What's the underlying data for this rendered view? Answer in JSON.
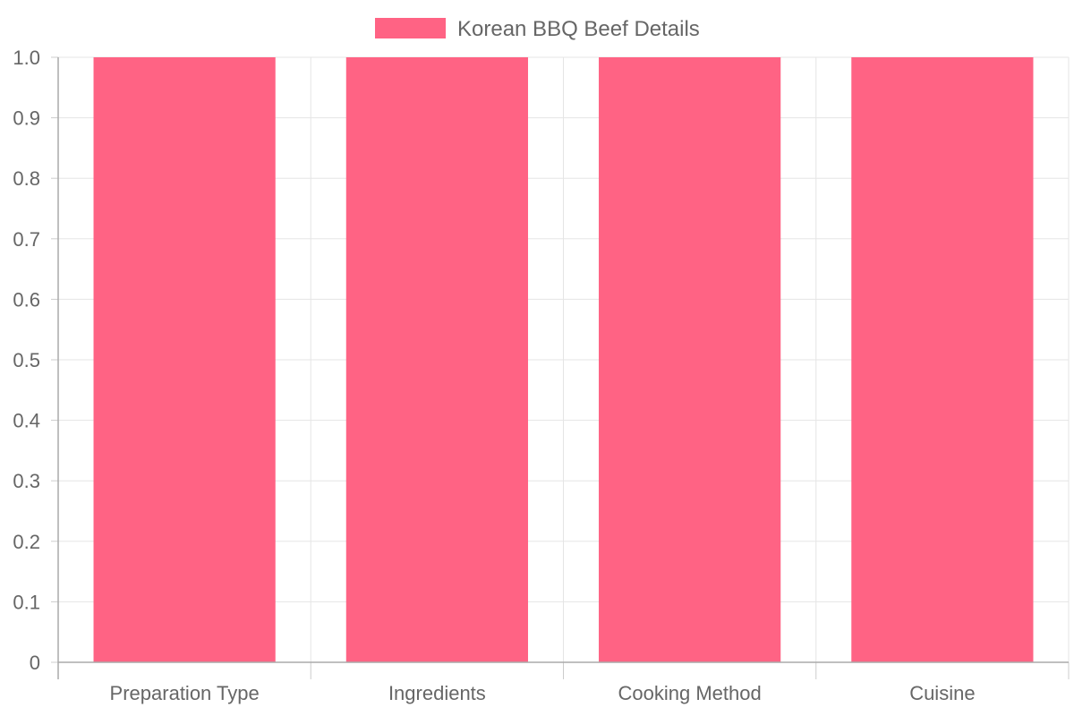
{
  "chart_data": {
    "type": "bar",
    "categories": [
      "Preparation Type",
      "Ingredients",
      "Cooking Method",
      "Cuisine"
    ],
    "series": [
      {
        "name": "Korean BBQ Beef Details",
        "values": [
          1,
          1,
          1,
          1
        ],
        "color": "#ff6384"
      }
    ],
    "ylim": [
      0,
      1
    ],
    "yticks": [
      "0",
      "0.1",
      "0.2",
      "0.3",
      "0.4",
      "0.5",
      "0.6",
      "0.7",
      "0.8",
      "0.9",
      "1.0"
    ],
    "grid": true,
    "legend_position": "top"
  }
}
